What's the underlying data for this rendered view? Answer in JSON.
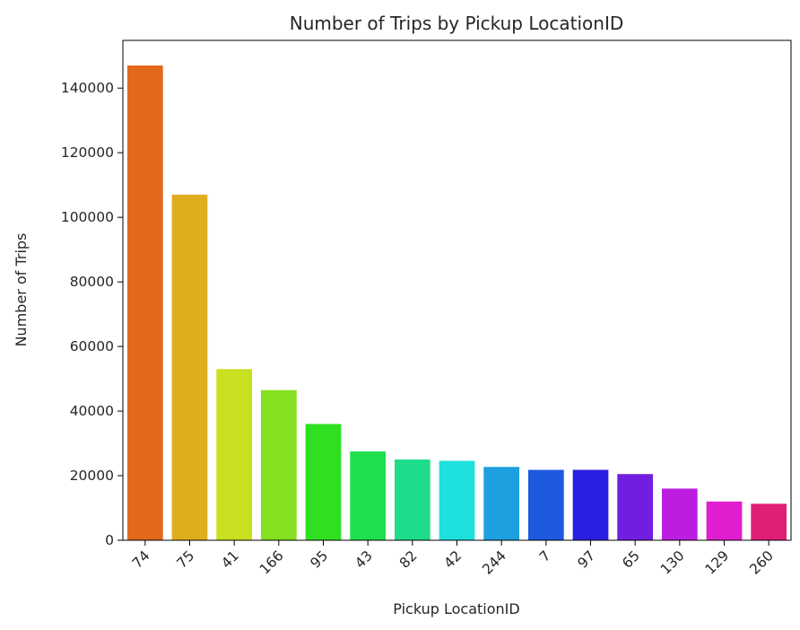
{
  "chart_data": {
    "type": "bar",
    "title": "Number of Trips by Pickup LocationID",
    "xlabel": "Pickup LocationID",
    "ylabel": "Number of Trips",
    "categories": [
      "74",
      "75",
      "41",
      "166",
      "95",
      "43",
      "82",
      "42",
      "244",
      "7",
      "97",
      "65",
      "130",
      "129",
      "260"
    ],
    "values": [
      147000,
      107000,
      53000,
      46500,
      36000,
      27500,
      25000,
      24600,
      22700,
      21800,
      21800,
      20500,
      16000,
      12000,
      11300
    ],
    "ylim": [
      0,
      150000
    ],
    "yticks": [
      0,
      20000,
      40000,
      60000,
      80000,
      100000,
      120000,
      140000
    ],
    "grid": false,
    "colors": [
      "#e2681c",
      "#e0ad1f",
      "#c8e020",
      "#84e020",
      "#2ee020",
      "#1ee04e",
      "#1edd8a",
      "#1ee0dc",
      "#1e9fe0",
      "#1e5ae0",
      "#2a1ee0",
      "#721ee0",
      "#bb1ee0",
      "#e01ed0",
      "#e01e76"
    ]
  }
}
